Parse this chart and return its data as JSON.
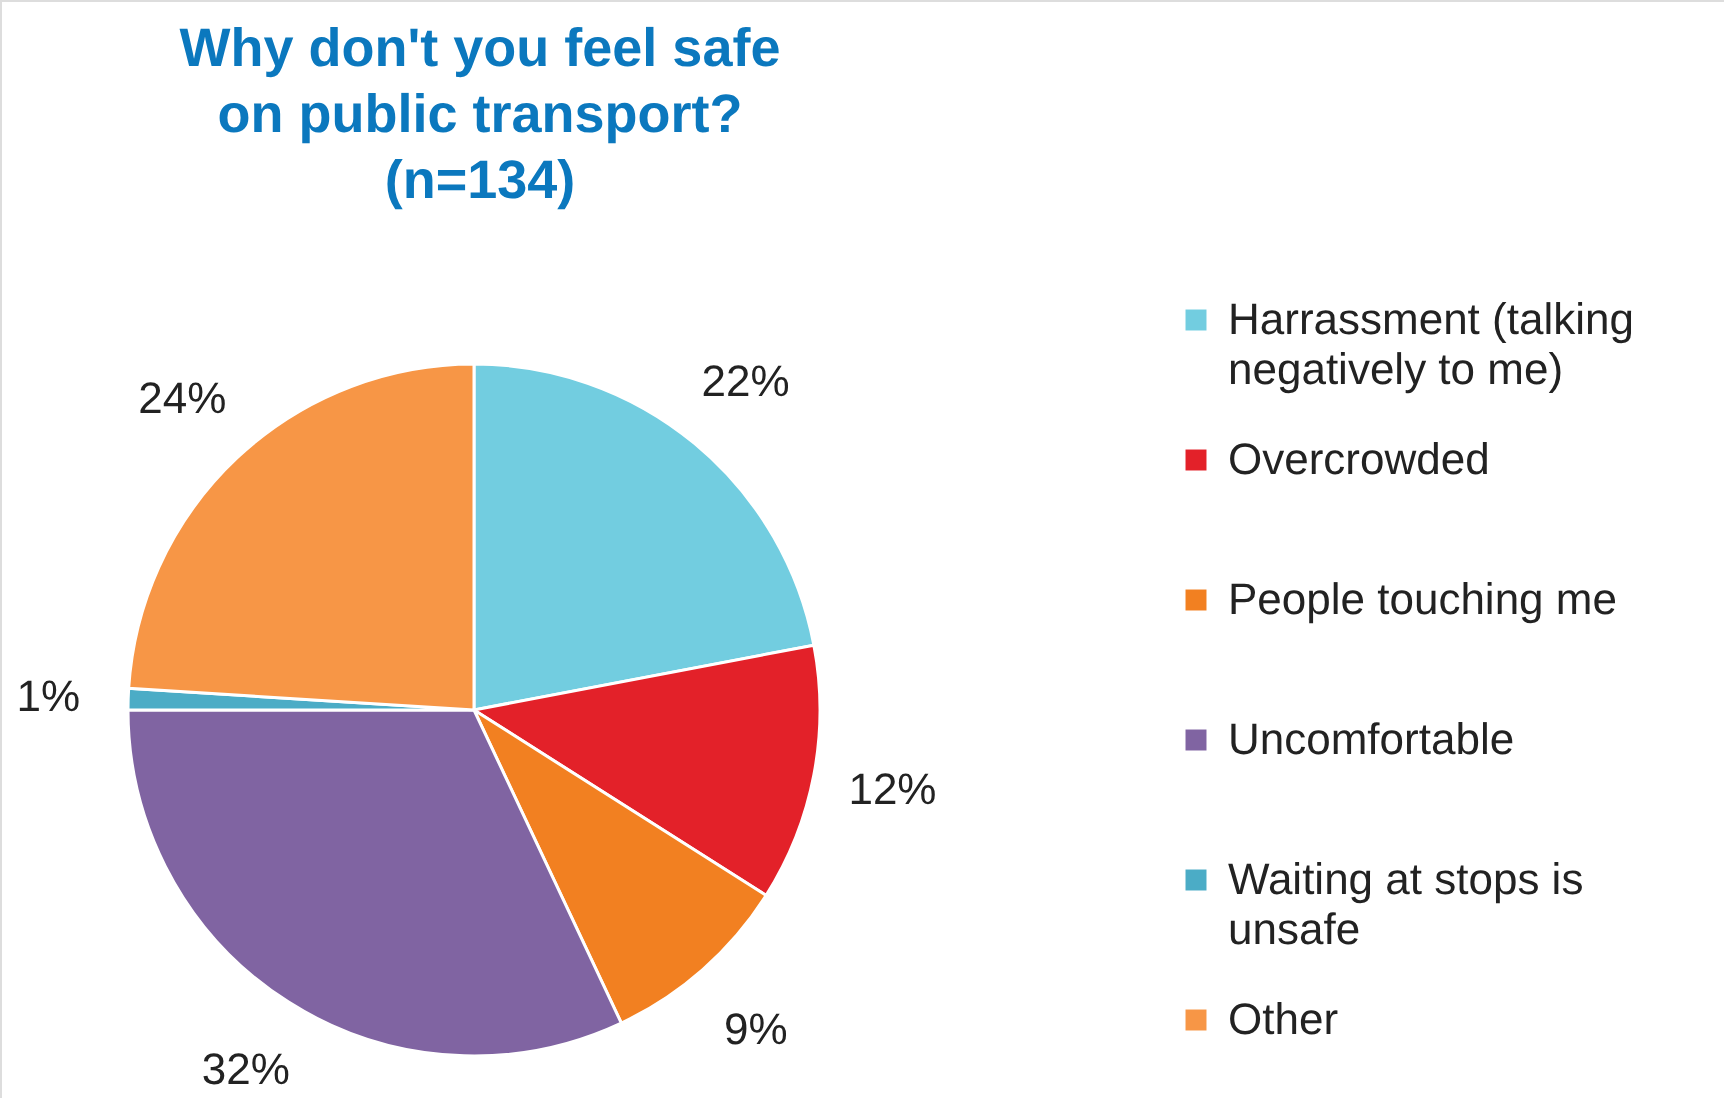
{
  "chart_data": {
    "type": "pie",
    "title": "Why don't you feel safe on public transport? (n=134)",
    "categories": [
      "Harrassment (talking negatively to me)",
      "Overcrowded",
      "People touching me",
      "Uncomfortable",
      "Waiting at stops is unsafe",
      "Other"
    ],
    "values": [
      22,
      12,
      9,
      32,
      1,
      24
    ],
    "colors": [
      "#72cde0",
      "#e32129",
      "#f28021",
      "#8064a2",
      "#4bacc6",
      "#f79646"
    ],
    "value_labels": [
      "22%",
      "12%",
      "9%",
      "32%",
      "1%",
      "24%"
    ],
    "data_labels": true,
    "legend": "right"
  }
}
